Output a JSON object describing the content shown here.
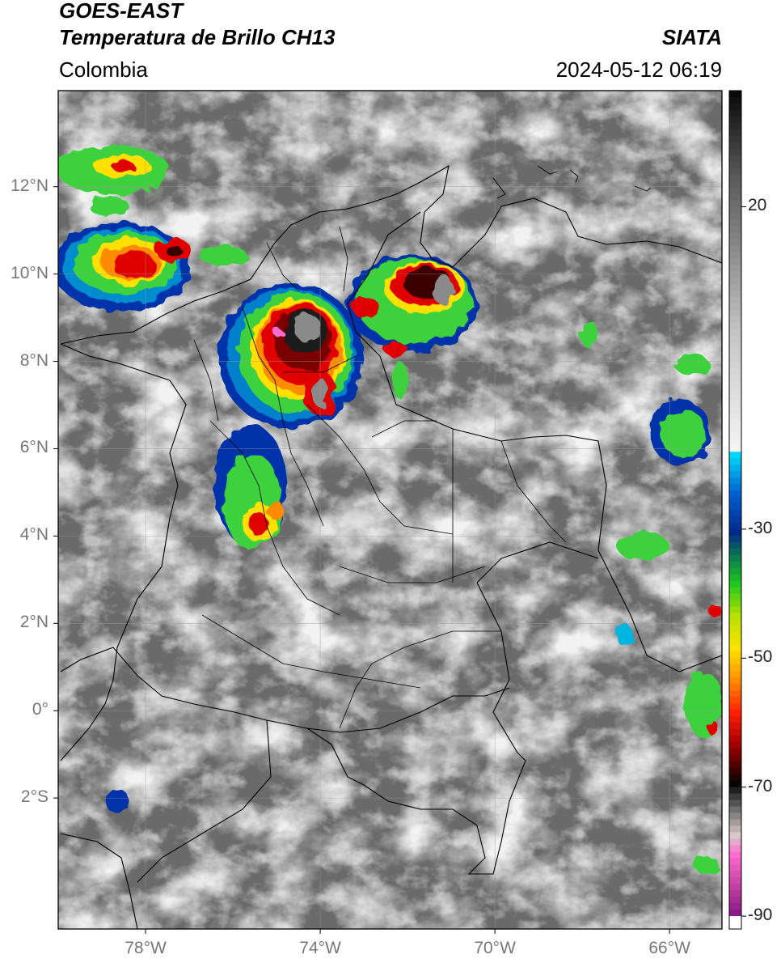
{
  "header": {
    "satellite": "GOES-EAST",
    "product": "Temperatura de Brillo CH13",
    "region": "Colombia",
    "organization": "SIATA",
    "datetime": "2024-05-12 06:19"
  },
  "map": {
    "lon_range": [
      -80,
      -64.8
    ],
    "lat_range": [
      -5,
      14.2
    ],
    "lat_ticks": [
      {
        "value": 12,
        "label": "12°N"
      },
      {
        "value": 10,
        "label": "10°N"
      },
      {
        "value": 8,
        "label": "8°N"
      },
      {
        "value": 6,
        "label": "6°N"
      },
      {
        "value": 4,
        "label": "4°N"
      },
      {
        "value": 2,
        "label": "2°N"
      },
      {
        "value": 0,
        "label": "0°"
      },
      {
        "value": -2,
        "label": "2°S"
      }
    ],
    "lon_ticks": [
      {
        "value": -78,
        "label": "78°W"
      },
      {
        "value": -74,
        "label": "74°W"
      },
      {
        "value": -70,
        "label": "70°W"
      },
      {
        "value": -66,
        "label": "66°W"
      }
    ],
    "background_colors": [
      "#5c5c5c",
      "#6e6e6e",
      "#8a8a8a",
      "#a8a8a8",
      "#c8c8c8",
      "#e2e2e2"
    ],
    "storm_colors": [
      "#1a1a1a",
      "#7a0000",
      "#e00000",
      "#ff8c00",
      "#ffe000",
      "#3cd23c",
      "#0a8a6a",
      "#0033aa",
      "#00c8f0"
    ]
  },
  "colorbar": {
    "range": [
      -92,
      38
    ],
    "ticks": [
      {
        "value": 20,
        "label": "20"
      },
      {
        "value": -30,
        "label": "-30"
      },
      {
        "value": -50,
        "label": "-50"
      },
      {
        "value": -70,
        "label": "-70"
      },
      {
        "value": -90,
        "label": "-90"
      }
    ],
    "stops": [
      {
        "value": 38,
        "color": "#0a0a0a"
      },
      {
        "value": 25,
        "color": "#5a5a5a"
      },
      {
        "value": 0,
        "color": "#c8c8c8"
      },
      {
        "value": -17,
        "color": "#f4f4f4"
      },
      {
        "value": -18,
        "color": "#00d8f8"
      },
      {
        "value": -24,
        "color": "#0060d0"
      },
      {
        "value": -30,
        "color": "#002a8a"
      },
      {
        "value": -33,
        "color": "#0a6a5a"
      },
      {
        "value": -38,
        "color": "#1ec81e"
      },
      {
        "value": -43,
        "color": "#b8e000"
      },
      {
        "value": -48,
        "color": "#ffe400"
      },
      {
        "value": -53,
        "color": "#ff8c00"
      },
      {
        "value": -58,
        "color": "#ff1e00"
      },
      {
        "value": -63,
        "color": "#a00000"
      },
      {
        "value": -67,
        "color": "#3a0000"
      },
      {
        "value": -69,
        "color": "#050505"
      },
      {
        "value": -73,
        "color": "#707070"
      },
      {
        "value": -77,
        "color": "#d8c8c8"
      },
      {
        "value": -80,
        "color": "#ff6ad0"
      },
      {
        "value": -85,
        "color": "#c040a0"
      },
      {
        "value": -89,
        "color": "#8a1a8a"
      },
      {
        "value": -90,
        "color": "#ffffff"
      },
      {
        "value": -92,
        "color": "#ffffff"
      }
    ]
  }
}
